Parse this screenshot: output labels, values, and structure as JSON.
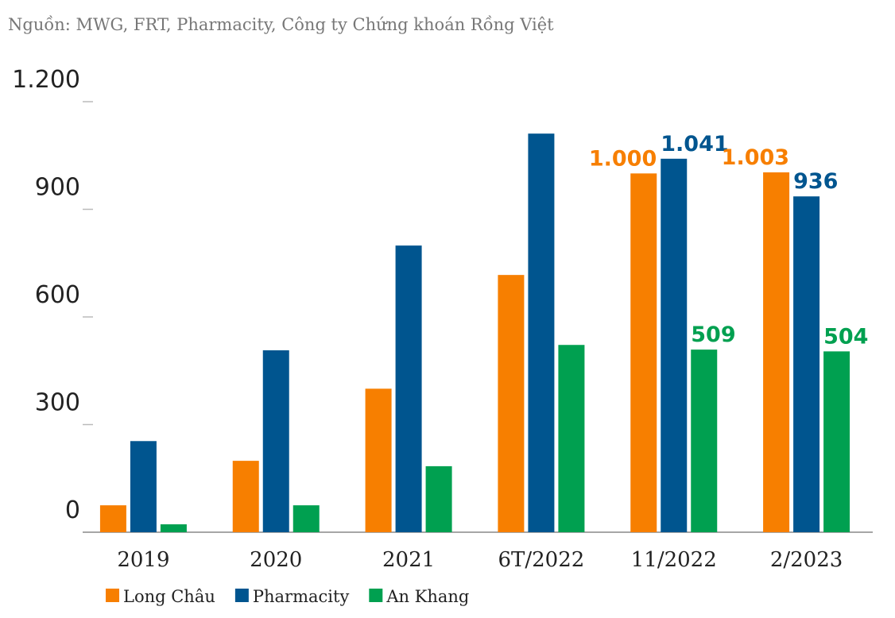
{
  "chart_data": {
    "type": "bar",
    "source": "Nguồn: MWG, FRT, Pharmacity, Công ty Chứng khoán Rồng Việt",
    "categories": [
      "2019",
      "2020",
      "2021",
      "6T/2022",
      "11/2022",
      "2/2023"
    ],
    "series": [
      {
        "name": "Long Châu",
        "color": "#f77f00",
        "values": [
          75,
          199,
          400,
          717,
          1000,
          1003
        ],
        "value_labels": [
          null,
          null,
          null,
          null,
          "1.000",
          "1.003"
        ]
      },
      {
        "name": "Pharmacity",
        "color": "#00558f",
        "values": [
          254,
          507,
          799,
          1111,
          1041,
          936
        ],
        "value_labels": [
          null,
          null,
          null,
          null,
          "1.041",
          "936"
        ]
      },
      {
        "name": "An Khang",
        "color": "#00a050",
        "values": [
          22,
          75,
          184,
          522,
          509,
          504
        ],
        "value_labels": [
          null,
          null,
          null,
          null,
          "509",
          "504"
        ]
      }
    ],
    "ylim": [
      0,
      1200
    ],
    "yticks": [
      0,
      300,
      600,
      900,
      {
        "value": 1200,
        "label": "1.200"
      }
    ],
    "legend": "bottom"
  }
}
